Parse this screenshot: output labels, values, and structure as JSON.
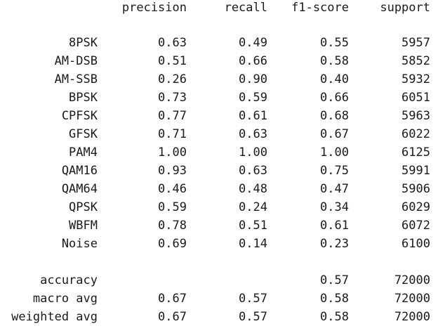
{
  "report": {
    "header": {
      "precision": "precision",
      "recall": "recall",
      "f1": "f1-score",
      "support": "support"
    },
    "rows": [
      {
        "label": "8PSK",
        "precision": "0.63",
        "recall": "0.49",
        "f1": "0.55",
        "support": "5957"
      },
      {
        "label": "AM-DSB",
        "precision": "0.51",
        "recall": "0.66",
        "f1": "0.58",
        "support": "5852"
      },
      {
        "label": "AM-SSB",
        "precision": "0.26",
        "recall": "0.90",
        "f1": "0.40",
        "support": "5932"
      },
      {
        "label": "BPSK",
        "precision": "0.73",
        "recall": "0.59",
        "f1": "0.66",
        "support": "6051"
      },
      {
        "label": "CPFSK",
        "precision": "0.77",
        "recall": "0.61",
        "f1": "0.68",
        "support": "5963"
      },
      {
        "label": "GFSK",
        "precision": "0.71",
        "recall": "0.63",
        "f1": "0.67",
        "support": "6022"
      },
      {
        "label": "PAM4",
        "precision": "1.00",
        "recall": "1.00",
        "f1": "1.00",
        "support": "6125"
      },
      {
        "label": "QAM16",
        "precision": "0.93",
        "recall": "0.63",
        "f1": "0.75",
        "support": "5991"
      },
      {
        "label": "QAM64",
        "precision": "0.46",
        "recall": "0.48",
        "f1": "0.47",
        "support": "5906"
      },
      {
        "label": "QPSK",
        "precision": "0.59",
        "recall": "0.24",
        "f1": "0.34",
        "support": "6029"
      },
      {
        "label": "WBFM",
        "precision": "0.78",
        "recall": "0.51",
        "f1": "0.61",
        "support": "6072"
      },
      {
        "label": "Noise",
        "precision": "0.69",
        "recall": "0.14",
        "f1": "0.23",
        "support": "6100"
      }
    ],
    "accuracy": {
      "label": "accuracy",
      "f1": "0.57",
      "support": "72000"
    },
    "macro_avg": {
      "label": "macro avg",
      "precision": "0.67",
      "recall": "0.57",
      "f1": "0.58",
      "support": "72000"
    },
    "weighted_avg": {
      "label": "weighted avg",
      "precision": "0.67",
      "recall": "0.57",
      "f1": "0.58",
      "support": "72000"
    }
  }
}
